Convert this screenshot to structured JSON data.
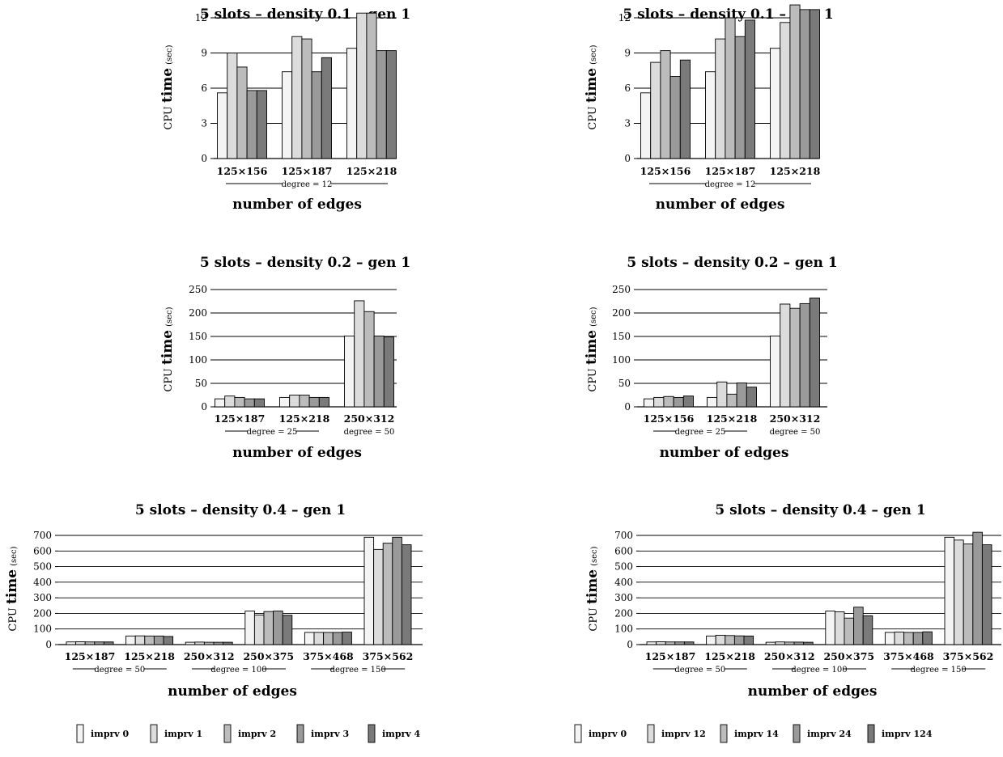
{
  "chart_data": [
    {
      "type": "bar",
      "title": "5 slots – density 0.1 – gen 1",
      "xlabel": "number of edges",
      "ylabel": "CPU time (sec)",
      "ylabel_main": "CPU",
      "ylabel_mid": "time",
      "ylabel_unit": "(sec)",
      "ylim": [
        0,
        13
      ],
      "yticks": [
        0,
        3,
        6,
        9,
        12
      ],
      "categories": [
        "125×156",
        "125×187",
        "125×218"
      ],
      "degree_groups": [
        {
          "label": "degree = 12",
          "from": 0,
          "to": 2
        }
      ],
      "series": [
        {
          "name": "imprv 0",
          "values": [
            5.6,
            7.4,
            9.4
          ]
        },
        {
          "name": "imprv 1",
          "values": [
            9.0,
            10.4,
            12.4
          ]
        },
        {
          "name": "imprv 2",
          "values": [
            7.8,
            10.2,
            12.4
          ]
        },
        {
          "name": "imprv 3",
          "values": [
            5.8,
            7.4,
            9.2
          ]
        },
        {
          "name": "imprv 4",
          "values": [
            5.8,
            8.6,
            9.2
          ]
        }
      ]
    },
    {
      "type": "bar",
      "title": "5 slots – density 0.1 – gen 1",
      "xlabel": "number of edges",
      "ylabel": "CPU time (sec)",
      "ylabel_main": "CPU",
      "ylabel_mid": "time",
      "ylabel_unit": "(sec)",
      "ylim": [
        0,
        13
      ],
      "yticks": [
        0,
        3,
        6,
        9,
        12
      ],
      "categories": [
        "125×156",
        "125×187",
        "125×218"
      ],
      "degree_groups": [
        {
          "label": "degree = 12",
          "from": 0,
          "to": 2
        }
      ],
      "series": [
        {
          "name": "imprv 0",
          "values": [
            5.6,
            7.4,
            9.4
          ]
        },
        {
          "name": "imprv 12",
          "values": [
            8.2,
            10.2,
            11.6
          ]
        },
        {
          "name": "imprv 14",
          "values": [
            9.2,
            12.0,
            13.1
          ]
        },
        {
          "name": "imprv 24",
          "values": [
            7.0,
            10.4,
            12.7
          ]
        },
        {
          "name": "imprv 124",
          "values": [
            8.4,
            11.8,
            12.7
          ]
        }
      ]
    },
    {
      "type": "bar",
      "title": "5 slots – density 0.2 – gen 1",
      "xlabel": "number of edges",
      "ylabel": "CPU time (sec)",
      "ylabel_main": "CPU",
      "ylabel_mid": "time",
      "ylabel_unit": "(sec)",
      "ylim": [
        0,
        250
      ],
      "yticks": [
        0,
        50,
        100,
        150,
        200,
        250
      ],
      "categories": [
        "125×187",
        "125×218",
        "250×312"
      ],
      "degree_groups": [
        {
          "label": "degree = 25",
          "from": 0,
          "to": 1
        },
        {
          "label": "degree = 50",
          "from": 2,
          "to": 2
        }
      ],
      "series": [
        {
          "name": "imprv 0",
          "values": [
            17,
            20,
            151
          ]
        },
        {
          "name": "imprv 1",
          "values": [
            23,
            25,
            226
          ]
        },
        {
          "name": "imprv 2",
          "values": [
            20,
            25,
            203
          ]
        },
        {
          "name": "imprv 3",
          "values": [
            17,
            20,
            151
          ]
        },
        {
          "name": "imprv 4",
          "values": [
            17,
            20,
            149
          ]
        }
      ]
    },
    {
      "type": "bar",
      "title": "5 slots – density 0.2 – gen 1",
      "xlabel": "number of edges",
      "ylabel": "CPU time (sec)",
      "ylabel_main": "CPU",
      "ylabel_mid": "time",
      "ylabel_unit": "(sec)",
      "ylim": [
        0,
        250
      ],
      "yticks": [
        0,
        50,
        100,
        150,
        200,
        250
      ],
      "categories": [
        "125×156",
        "125×218",
        "250×312"
      ],
      "degree_groups": [
        {
          "label": "degree = 25",
          "from": 0,
          "to": 1
        },
        {
          "label": "degree = 50",
          "from": 2,
          "to": 2
        }
      ],
      "series": [
        {
          "name": "imprv 0",
          "values": [
            17,
            20,
            151
          ]
        },
        {
          "name": "imprv 12",
          "values": [
            20,
            53,
            219
          ]
        },
        {
          "name": "imprv 14",
          "values": [
            22,
            27,
            210
          ]
        },
        {
          "name": "imprv 24",
          "values": [
            20,
            51,
            220
          ]
        },
        {
          "name": "imprv 124",
          "values": [
            23,
            42,
            232
          ]
        }
      ]
    },
    {
      "type": "bar",
      "title": "5 slots – density 0.4 – gen 1",
      "xlabel": "number of edges",
      "ylabel": "CPU time (sec)",
      "ylabel_main": "CPU",
      "ylabel_mid": "time",
      "ylabel_unit": "(sec)",
      "ylim": [
        0,
        700
      ],
      "yticks": [
        0,
        100,
        200,
        300,
        400,
        500,
        600,
        700
      ],
      "categories": [
        "125×187",
        "125×218",
        "250×312",
        "250×375",
        "375×468",
        "375×562"
      ],
      "degree_groups": [
        {
          "label": "degree = 50",
          "from": 0,
          "to": 1
        },
        {
          "label": "degree = 100",
          "from": 2,
          "to": 3
        },
        {
          "label": "degree = 150",
          "from": 4,
          "to": 5
        }
      ],
      "series": [
        {
          "name": "imprv 0",
          "values": [
            17,
            55,
            15,
            215,
            78,
            688
          ]
        },
        {
          "name": "imprv 1",
          "values": [
            18,
            56,
            16,
            190,
            78,
            610
          ]
        },
        {
          "name": "imprv 2",
          "values": [
            17,
            55,
            15,
            212,
            78,
            650
          ]
        },
        {
          "name": "imprv 3",
          "values": [
            17,
            55,
            15,
            215,
            78,
            688
          ]
        },
        {
          "name": "imprv 4",
          "values": [
            17,
            52,
            15,
            188,
            80,
            640
          ]
        }
      ]
    },
    {
      "type": "bar",
      "title": "5 slots – density 0.4 – gen 1",
      "xlabel": "number of edges",
      "ylabel": "CPU time (sec)",
      "ylabel_main": "CPU",
      "ylabel_mid": "time",
      "ylabel_unit": "(sec)",
      "ylim": [
        0,
        700
      ],
      "yticks": [
        0,
        100,
        200,
        300,
        400,
        500,
        600,
        700
      ],
      "categories": [
        "125×187",
        "125×218",
        "250×312",
        "250×375",
        "375×468",
        "375×562"
      ],
      "degree_groups": [
        {
          "label": "degree = 50",
          "from": 0,
          "to": 1
        },
        {
          "label": "degree = 100",
          "from": 2,
          "to": 3
        },
        {
          "label": "degree = 150",
          "from": 4,
          "to": 5
        }
      ],
      "series": [
        {
          "name": "imprv 0",
          "values": [
            17,
            55,
            15,
            215,
            78,
            688
          ]
        },
        {
          "name": "imprv 12",
          "values": [
            18,
            60,
            17,
            210,
            80,
            670
          ]
        },
        {
          "name": "imprv 14",
          "values": [
            17,
            58,
            16,
            170,
            78,
            645
          ]
        },
        {
          "name": "imprv 24",
          "values": [
            17,
            56,
            16,
            240,
            78,
            720
          ]
        },
        {
          "name": "imprv 124",
          "values": [
            17,
            55,
            15,
            185,
            82,
            640
          ]
        }
      ]
    }
  ],
  "legends": [
    [
      "imprv 0",
      "imprv 1",
      "imprv 2",
      "imprv 3",
      "imprv 4"
    ],
    [
      "imprv 0",
      "imprv 12",
      "imprv 14",
      "imprv 24",
      "imprv 124"
    ]
  ],
  "colors": {
    "series": [
      "#f4f4f4",
      "#dcdcdc",
      "#bcbcbc",
      "#9a9a9a",
      "#7a7a7a"
    ],
    "stroke": "#000000",
    "gridline": "#000000"
  }
}
